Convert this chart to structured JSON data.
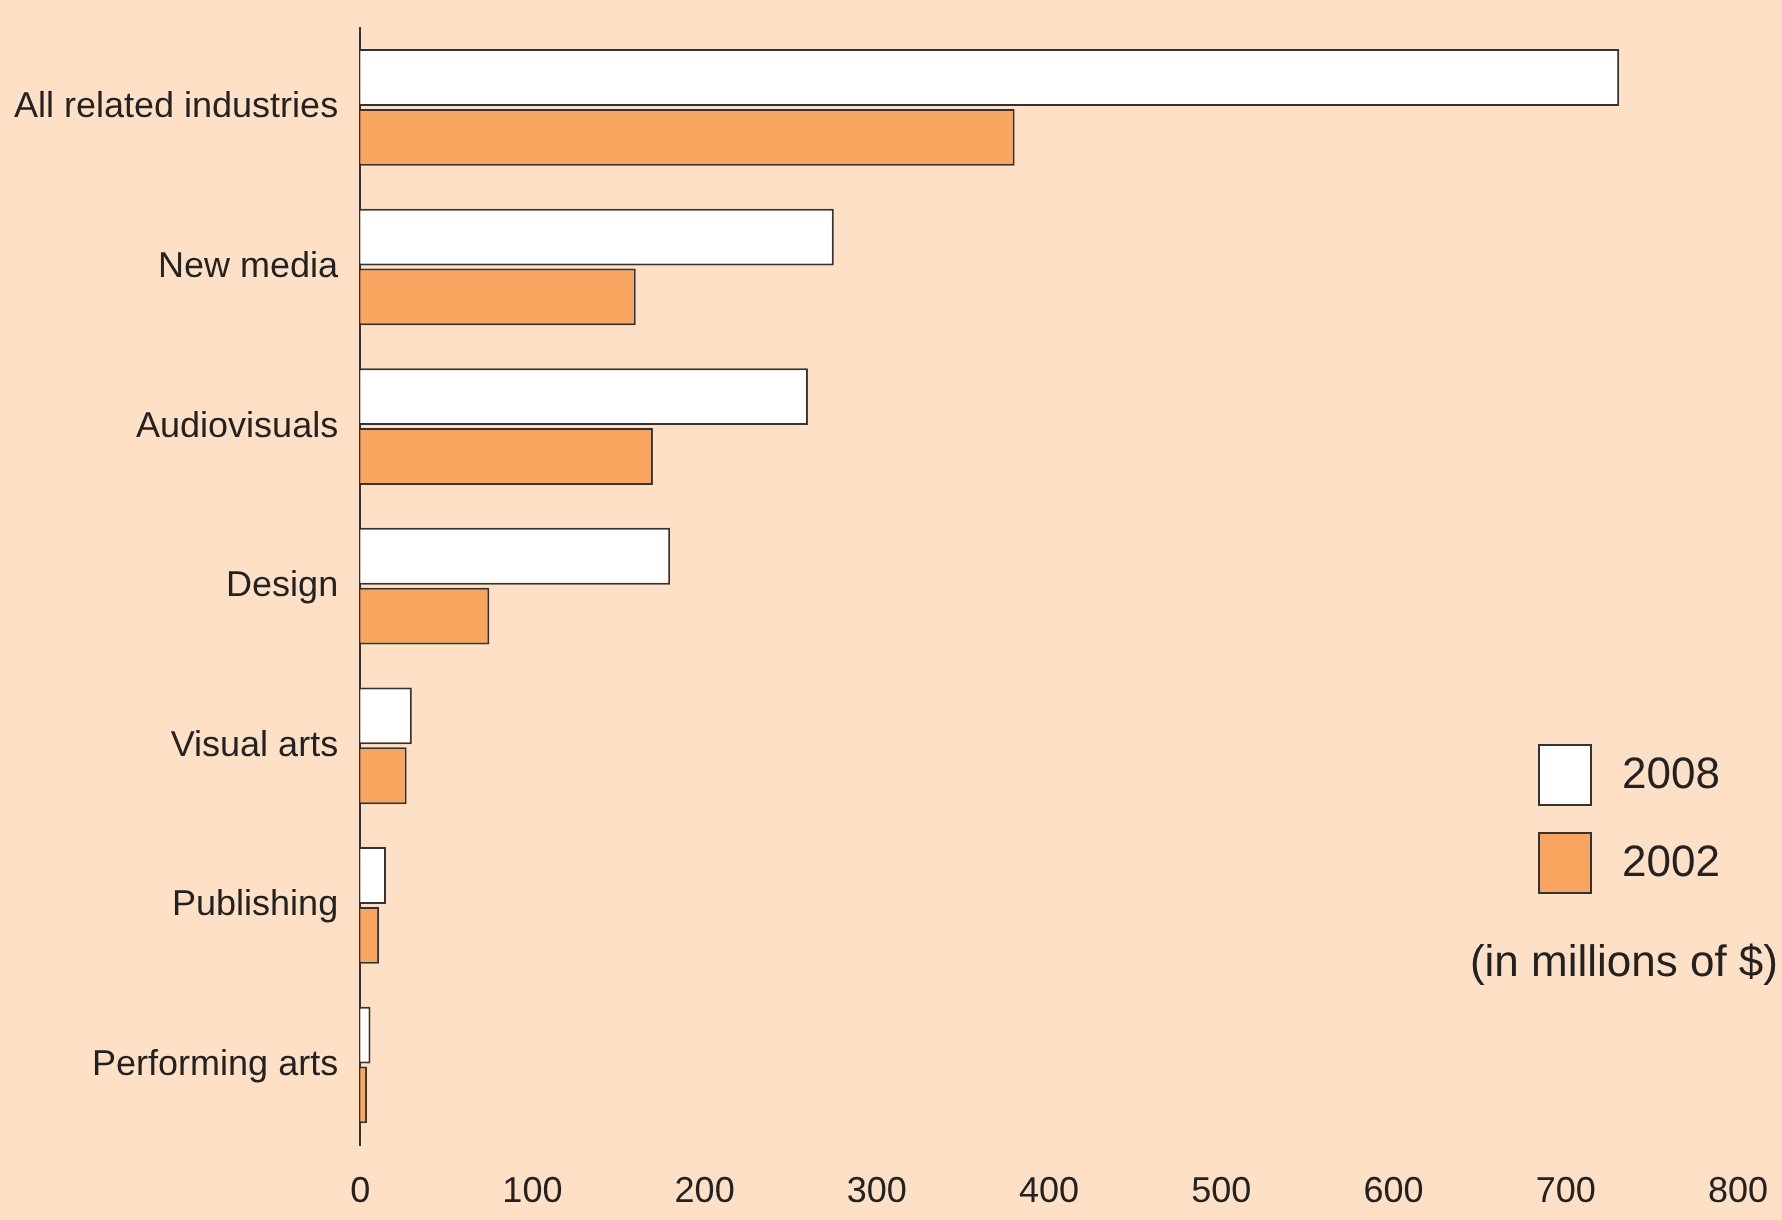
{
  "chart_data": {
    "type": "bar",
    "orientation": "horizontal",
    "categories": [
      "All related industries",
      "New media",
      "Audiovisuals",
      "Design",
      "Visual arts",
      "Publishing",
      "Performing arts"
    ],
    "series": [
      {
        "name": "2008",
        "color": "#ffffff",
        "values": [
          731,
          275,
          260,
          180,
          30,
          15,
          6
        ]
      },
      {
        "name": "2002",
        "color": "#f7a55f",
        "values": [
          380,
          160,
          170,
          75,
          27,
          11,
          4
        ]
      }
    ],
    "xlim": [
      0,
      800
    ],
    "xticks": [
      0,
      100,
      200,
      300,
      400,
      500,
      600,
      700,
      800
    ],
    "grid": false,
    "legend": "right",
    "annotations": [
      "(in millions of $)"
    ]
  }
}
